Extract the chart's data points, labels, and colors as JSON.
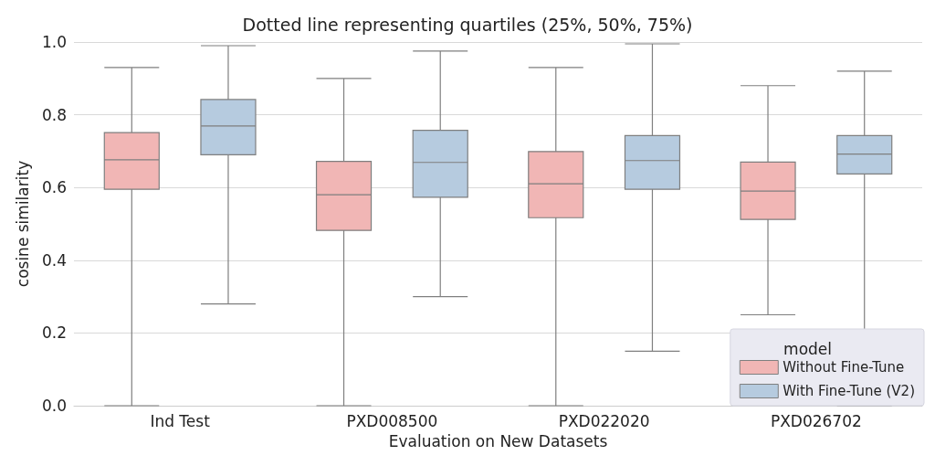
{
  "chart_data": {
    "type": "box",
    "title": "Dotted line representing quartiles (25%, 50%, 75%)",
    "xlabel": "Evaluation on New Datasets",
    "ylabel": "cosine similarity",
    "legend_title": "model",
    "categories": [
      "Ind Test",
      "PXD008500",
      "PXD022020",
      "PXD026702"
    ],
    "series": [
      {
        "name": "Without Fine-Tune",
        "color": "#f1b6b5",
        "boxes": [
          {
            "low": 0.0,
            "q1": 0.595,
            "median": 0.676,
            "q3": 0.751,
            "high": 0.93
          },
          {
            "low": 0.0,
            "q1": 0.482,
            "median": 0.58,
            "q3": 0.672,
            "high": 0.9
          },
          {
            "low": 0.0,
            "q1": 0.517,
            "median": 0.61,
            "q3": 0.699,
            "high": 0.93
          },
          {
            "low": 0.25,
            "q1": 0.512,
            "median": 0.59,
            "q3": 0.67,
            "high": 0.88
          }
        ]
      },
      {
        "name": "With Fine-Tune (V2)",
        "color": "#b6cbdf",
        "boxes": [
          {
            "low": 0.28,
            "q1": 0.69,
            "median": 0.769,
            "q3": 0.842,
            "high": 0.99
          },
          {
            "low": 0.3,
            "q1": 0.573,
            "median": 0.669,
            "q3": 0.757,
            "high": 0.975
          },
          {
            "low": 0.15,
            "q1": 0.595,
            "median": 0.674,
            "q3": 0.743,
            "high": 0.995
          },
          {
            "low": 0.0,
            "q1": 0.637,
            "median": 0.692,
            "q3": 0.743,
            "high": 0.92
          }
        ]
      }
    ],
    "ylim": [
      0,
      1
    ],
    "yticks": [
      {
        "value": 0,
        "label": "0.0"
      },
      {
        "value": 0.2,
        "label": "0.2"
      },
      {
        "value": 0.4,
        "label": "0.4"
      },
      {
        "value": 0.6,
        "label": "0.6"
      },
      {
        "value": 0.8,
        "label": "0.8"
      },
      {
        "value": 1,
        "label": "1.0"
      }
    ],
    "grid": "y",
    "legend": "bottom right"
  }
}
